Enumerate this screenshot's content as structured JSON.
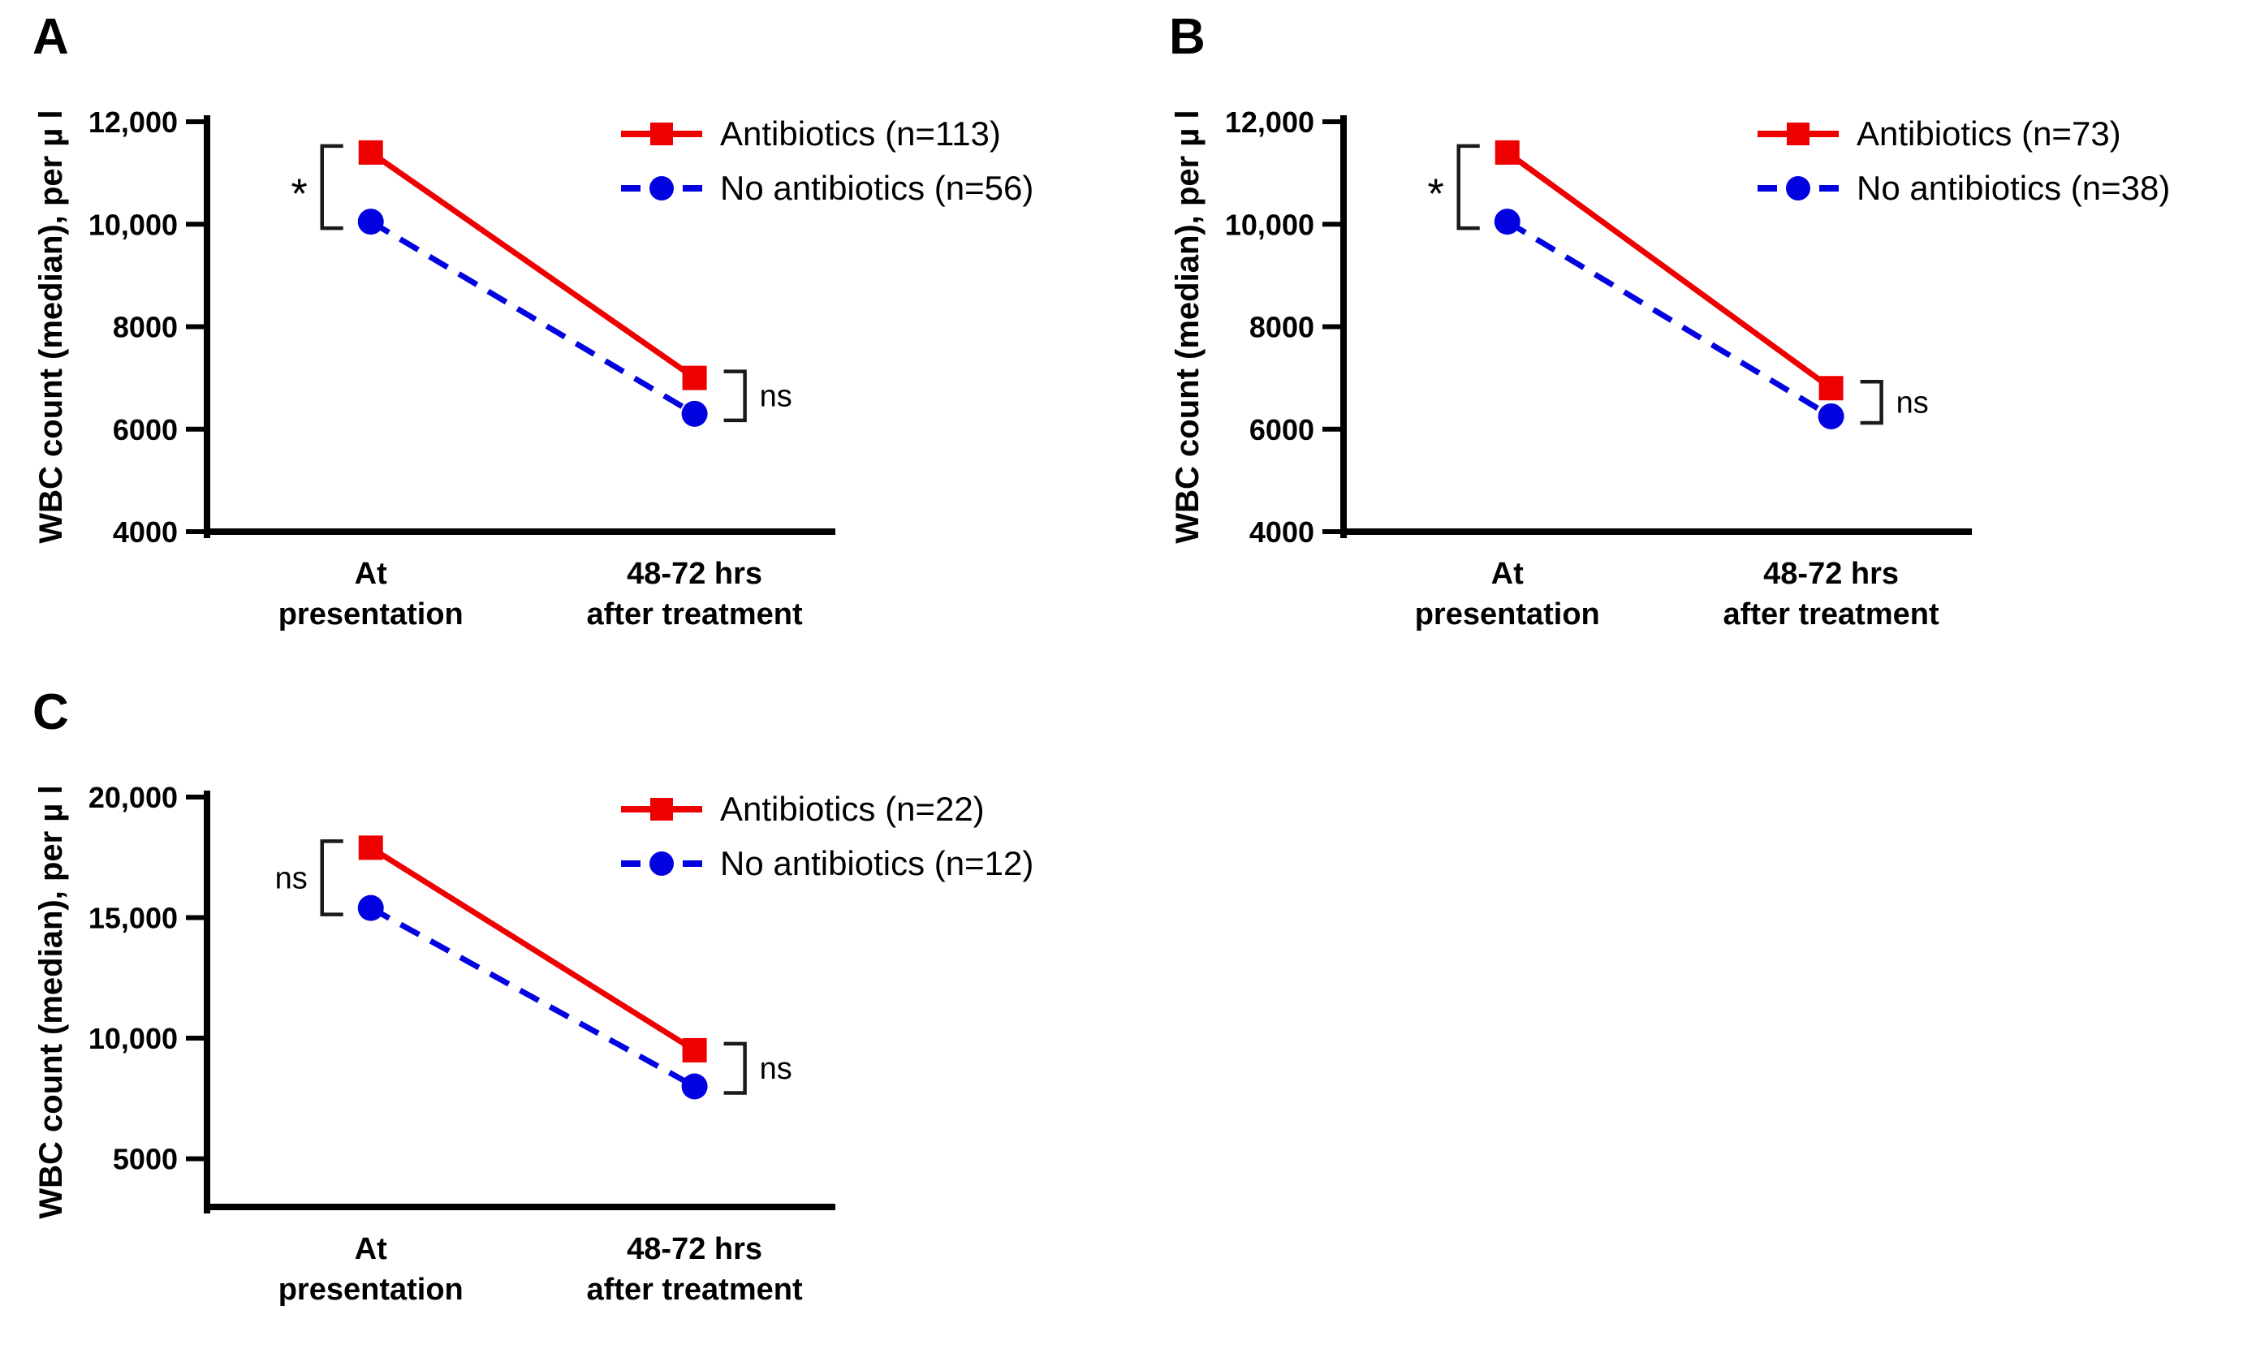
{
  "figure": {
    "background": "#ffffff",
    "axis_color": "#000000",
    "bracket_color": "#1a1a1a",
    "antibiotics_color": "#ee0000",
    "no_antibiotics_color": "#0202e0"
  },
  "chart_data": [
    {
      "id": "panel-a",
      "panel_label": "A",
      "type": "line",
      "ylabel": "WBC count (median), per µ l",
      "categories": [
        "At presentation",
        "48-72 hrs after treatment"
      ],
      "x_tick_lines": [
        [
          "At",
          "presentation"
        ],
        [
          "48-72 hrs",
          "after treatment"
        ]
      ],
      "ylim": [
        4000,
        12000
      ],
      "ylim_draw": [
        4000,
        12000
      ],
      "yticks": [
        12000,
        10000,
        8000,
        6000,
        4000
      ],
      "ytick_labels": [
        "12,000",
        "10,000",
        "8000",
        "6000",
        "4000"
      ],
      "grid": false,
      "legend_position": "top-right",
      "series": [
        {
          "name": "Antibiotics (n=113)",
          "color": "#ee0000",
          "marker": "square",
          "line_style": "solid",
          "values": [
            11400,
            7000
          ]
        },
        {
          "name": "No antibiotics (n=56)",
          "color": "#0202e0",
          "marker": "circle",
          "line_style": "dashed",
          "values": [
            10050,
            6300
          ]
        }
      ],
      "annotations": [
        {
          "label": "*",
          "x_index": 0,
          "side": "left"
        },
        {
          "label": "ns",
          "x_index": 1,
          "side": "right"
        }
      ]
    },
    {
      "id": "panel-b",
      "panel_label": "B",
      "type": "line",
      "ylabel": "WBC count (median), per µ l",
      "categories": [
        "At presentation",
        "48-72 hrs after treatment"
      ],
      "x_tick_lines": [
        [
          "At",
          "presentation"
        ],
        [
          "48-72 hrs",
          "after treatment"
        ]
      ],
      "ylim": [
        4000,
        12000
      ],
      "ylim_draw": [
        4000,
        12000
      ],
      "yticks": [
        12000,
        10000,
        8000,
        6000,
        4000
      ],
      "ytick_labels": [
        "12,000",
        "10,000",
        "8000",
        "6000",
        "4000"
      ],
      "grid": false,
      "legend_position": "top-right",
      "series": [
        {
          "name": "Antibiotics (n=73)",
          "color": "#ee0000",
          "marker": "square",
          "line_style": "solid",
          "values": [
            11400,
            6800
          ]
        },
        {
          "name": "No antibiotics (n=38)",
          "color": "#0202e0",
          "marker": "circle",
          "line_style": "dashed",
          "values": [
            10050,
            6250
          ]
        }
      ],
      "annotations": [
        {
          "label": "*",
          "x_index": 0,
          "side": "left"
        },
        {
          "label": "ns",
          "x_index": 1,
          "side": "right"
        }
      ]
    },
    {
      "id": "panel-c",
      "panel_label": "C",
      "type": "line",
      "ylabel": "WBC count (median), per µ l",
      "categories": [
        "At presentation",
        "48-72 hrs after treatment"
      ],
      "x_tick_lines": [
        [
          "At",
          "presentation"
        ],
        [
          "48-72 hrs",
          "after treatment"
        ]
      ],
      "ylim": [
        5000,
        20000
      ],
      "ylim_draw": [
        3000,
        20000
      ],
      "yticks": [
        20000,
        15000,
        10000,
        5000
      ],
      "ytick_labels": [
        "20,000",
        "15,000",
        "10,000",
        "5000"
      ],
      "grid": false,
      "legend_position": "top-right",
      "series": [
        {
          "name": "Antibiotics (n=22)",
          "color": "#ee0000",
          "marker": "square",
          "line_style": "solid",
          "values": [
            17900,
            9500
          ]
        },
        {
          "name": "No antibiotics (n=12)",
          "color": "#0202e0",
          "marker": "circle",
          "line_style": "dashed",
          "values": [
            15400,
            8000
          ]
        }
      ],
      "annotations": [
        {
          "label": "ns",
          "x_index": 0,
          "side": "left"
        },
        {
          "label": "ns",
          "x_index": 1,
          "side": "right"
        }
      ]
    }
  ]
}
